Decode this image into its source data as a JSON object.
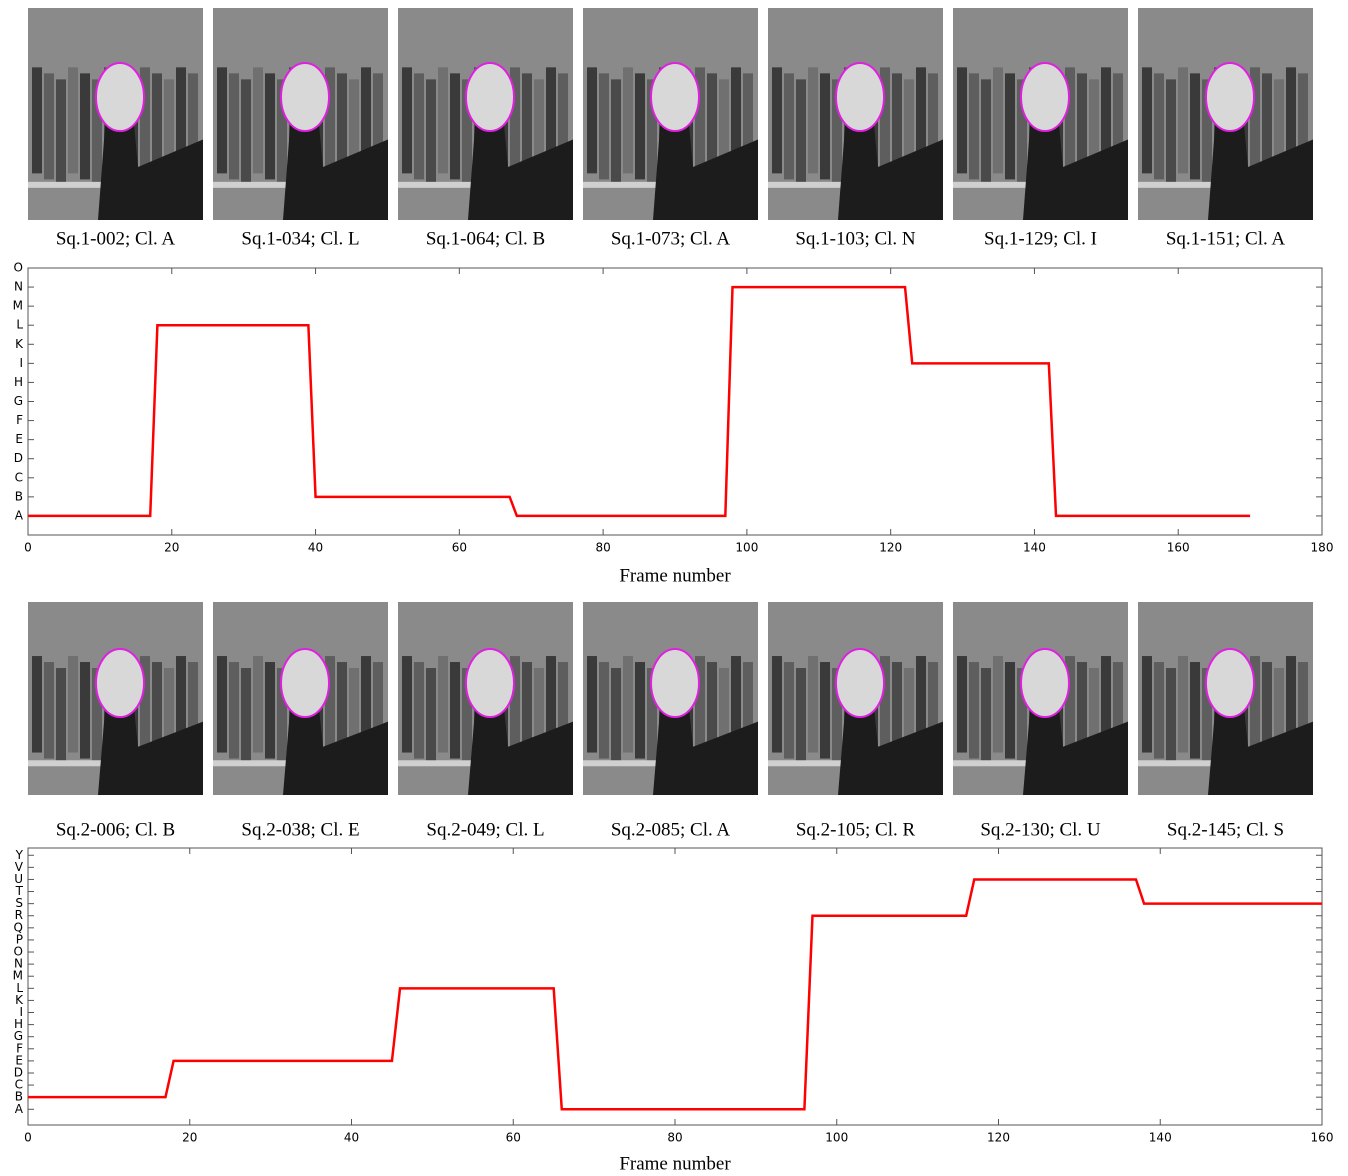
{
  "image_rows": [
    [
      "Sq.1-002; Cl. A",
      "Sq.1-034; Cl. L",
      "Sq.1-064; Cl. B",
      "Sq.1-073; Cl. A",
      "Sq.1-103; Cl. N",
      "Sq.1-129; Cl. I",
      "Sq.1-151; Cl. A"
    ],
    [
      "Sq.2-006; Cl. B",
      "Sq.2-038; Cl. E",
      "Sq.2-049; Cl. L",
      "Sq.2-085; Cl. A",
      "Sq.2-105; Cl. R",
      "Sq.2-130; Cl. U",
      "Sq.2-145; Cl. S"
    ]
  ],
  "chart_data": [
    {
      "type": "line",
      "xlabel": "Frame number",
      "x": [
        0,
        17,
        18,
        39,
        40,
        67,
        68,
        97,
        98,
        122,
        123,
        142,
        143,
        170
      ],
      "series": [
        {
          "color": "#ff0000",
          "values": [
            0,
            0,
            10,
            10,
            1,
            1,
            0,
            0,
            12,
            12,
            8,
            8,
            0,
            0
          ]
        }
      ],
      "xlim": [
        0,
        180
      ],
      "xticks": [
        0,
        20,
        40,
        60,
        80,
        100,
        120,
        140,
        160,
        180
      ],
      "ylim": [
        -1,
        13
      ],
      "yticks": [
        {
          "value": 0,
          "label": "A"
        },
        {
          "value": 1,
          "label": "B"
        },
        {
          "value": 2,
          "label": "C"
        },
        {
          "value": 3,
          "label": "D"
        },
        {
          "value": 4,
          "label": "E"
        },
        {
          "value": 5,
          "label": "F"
        },
        {
          "value": 6,
          "label": "G"
        },
        {
          "value": 7,
          "label": "H"
        },
        {
          "value": 8,
          "label": "I"
        },
        {
          "value": 9,
          "label": "K"
        },
        {
          "value": 10,
          "label": "L"
        },
        {
          "value": 11,
          "label": "M"
        },
        {
          "value": 12,
          "label": "N"
        },
        {
          "value": 13,
          "label": "O"
        }
      ]
    },
    {
      "type": "line",
      "xlabel": "Frame number",
      "x": [
        0,
        17,
        18,
        45,
        46,
        65,
        66,
        96,
        97,
        116,
        117,
        137,
        138,
        160
      ],
      "series": [
        {
          "color": "#ff0000",
          "values": [
            1,
            1,
            4,
            4,
            10,
            10,
            0,
            0,
            16,
            16,
            19,
            19,
            17,
            17
          ]
        }
      ],
      "xlim": [
        0,
        160
      ],
      "xticks": [
        0,
        20,
        40,
        60,
        80,
        100,
        120,
        140,
        160
      ],
      "ylim": [
        -1.3,
        21.6
      ],
      "yticks": [
        {
          "value": 0,
          "label": "A"
        },
        {
          "value": 1,
          "label": "B"
        },
        {
          "value": 2,
          "label": "C"
        },
        {
          "value": 3,
          "label": "D"
        },
        {
          "value": 4,
          "label": "E"
        },
        {
          "value": 5,
          "label": "F"
        },
        {
          "value": 6,
          "label": "G"
        },
        {
          "value": 7,
          "label": "H"
        },
        {
          "value": 8,
          "label": "I"
        },
        {
          "value": 9,
          "label": "K"
        },
        {
          "value": 10,
          "label": "L"
        },
        {
          "value": 11,
          "label": "M"
        },
        {
          "value": 12,
          "label": "N"
        },
        {
          "value": 13,
          "label": "O"
        },
        {
          "value": 14,
          "label": "P"
        },
        {
          "value": 15,
          "label": "Q"
        },
        {
          "value": 16,
          "label": "R"
        },
        {
          "value": 17,
          "label": "S"
        },
        {
          "value": 18,
          "label": "T"
        },
        {
          "value": 19,
          "label": "U"
        },
        {
          "value": 20,
          "label": "V"
        },
        {
          "value": 21,
          "label": "Y"
        }
      ]
    }
  ]
}
